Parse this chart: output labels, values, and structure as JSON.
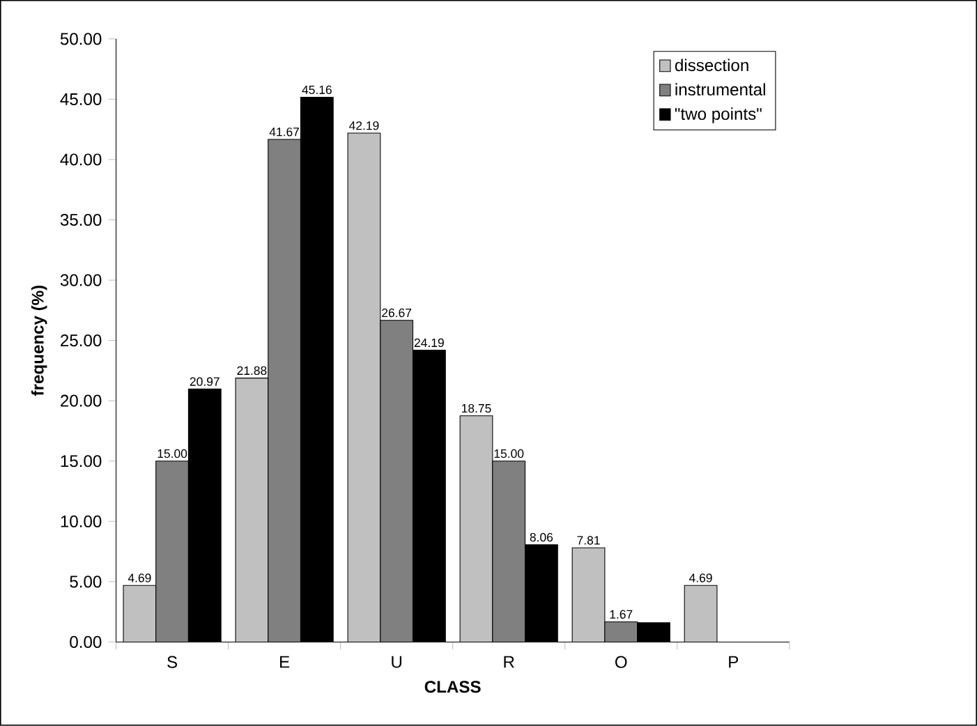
{
  "chart_data": {
    "type": "bar",
    "xlabel": "CLASS",
    "ylabel": "frequency (%)",
    "categories": [
      "S",
      "E",
      "U",
      "R",
      "O",
      "P"
    ],
    "series": [
      {
        "name": "dissection",
        "color": "#c0c0c0",
        "values": [
          4.69,
          21.88,
          42.19,
          18.75,
          7.81,
          4.69
        ],
        "value_labels": [
          "4.69",
          "21.88",
          "42.19",
          "18.75",
          "7.81",
          "4.69"
        ]
      },
      {
        "name": "instrumental",
        "color": "#808080",
        "values": [
          15.0,
          41.67,
          26.67,
          15.0,
          1.67,
          null
        ],
        "value_labels": [
          "15.00",
          "41.67",
          "26.67",
          "15.00",
          "1.67",
          null
        ]
      },
      {
        "name": "\"two points\"",
        "color": "#000000",
        "values": [
          20.97,
          45.16,
          24.19,
          8.06,
          1.6,
          null
        ],
        "value_labels": [
          "20.97",
          "45.16",
          "24.19",
          "8.06",
          null,
          null
        ]
      }
    ],
    "ylim": [
      0,
      50
    ],
    "yticks": [
      {
        "value": 0,
        "label": "0.00"
      },
      {
        "value": 5,
        "label": "5.00"
      },
      {
        "value": 10,
        "label": "10.00"
      },
      {
        "value": 15,
        "label": "15.00"
      },
      {
        "value": 20,
        "label": "20.00"
      },
      {
        "value": 25,
        "label": "25.00"
      },
      {
        "value": 30,
        "label": "30.00"
      },
      {
        "value": 35,
        "label": "35.00"
      },
      {
        "value": 40,
        "label": "40.00"
      },
      {
        "value": 45,
        "label": "45.00"
      },
      {
        "value": 50,
        "label": "50.00"
      }
    ],
    "grid": false,
    "legend": "top right"
  }
}
